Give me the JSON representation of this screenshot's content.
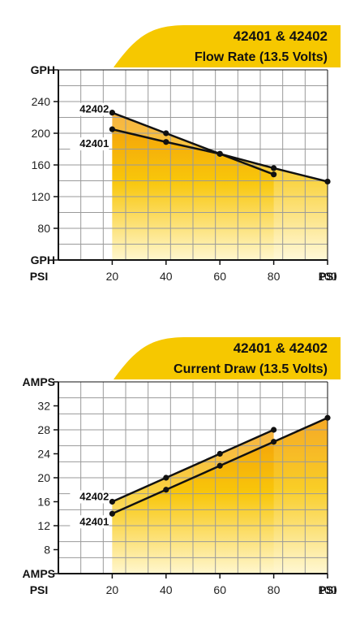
{
  "colors": {
    "banner": "#f6c800",
    "fill_top": "#f39a00",
    "fill_mid": "#f8c400",
    "fill_bottom": "#fff6cc",
    "line": "#111111",
    "grid": "#9a9a9a"
  },
  "chart_data": [
    {
      "type": "line",
      "title": "42401 & 42402",
      "subtitle": "Flow Rate (13.5 Volts)",
      "xlabel_left": "PSI",
      "xlabel_right": "PSI",
      "ylabel_top": "GPH",
      "ylabel_bottom": "GPH",
      "x_ticks": [
        "20",
        "40",
        "60",
        "80",
        "100"
      ],
      "y_ticks": [
        "80",
        "120",
        "160",
        "200",
        "240"
      ],
      "xlim": [
        0,
        100
      ],
      "ylim": [
        40,
        280
      ],
      "grid": true,
      "series": [
        {
          "name": "42402",
          "x": [
            20,
            40,
            60,
            80,
            100
          ],
          "y": [
            226,
            200,
            174,
            156,
            139
          ]
        },
        {
          "name": "42401",
          "x": [
            20,
            40,
            60,
            80
          ],
          "y": [
            205,
            189,
            174,
            148
          ]
        }
      ]
    },
    {
      "type": "line",
      "title": "42401 & 42402",
      "subtitle": "Current Draw (13.5 Volts)",
      "xlabel_left": "PSI",
      "xlabel_right": "PSI",
      "ylabel_top": "AMPS",
      "ylabel_bottom": "AMPS",
      "x_ticks": [
        "20",
        "40",
        "60",
        "80",
        "100"
      ],
      "y_ticks": [
        "8",
        "12",
        "16",
        "20",
        "24",
        "28",
        "32"
      ],
      "xlim": [
        0,
        100
      ],
      "ylim": [
        4,
        36
      ],
      "grid": true,
      "series": [
        {
          "name": "42402",
          "x": [
            20,
            40,
            60,
            80
          ],
          "y": [
            16,
            20,
            24,
            28
          ]
        },
        {
          "name": "42401",
          "x": [
            20,
            40,
            60,
            80,
            100
          ],
          "y": [
            14,
            18,
            22,
            26,
            30
          ]
        }
      ]
    }
  ]
}
